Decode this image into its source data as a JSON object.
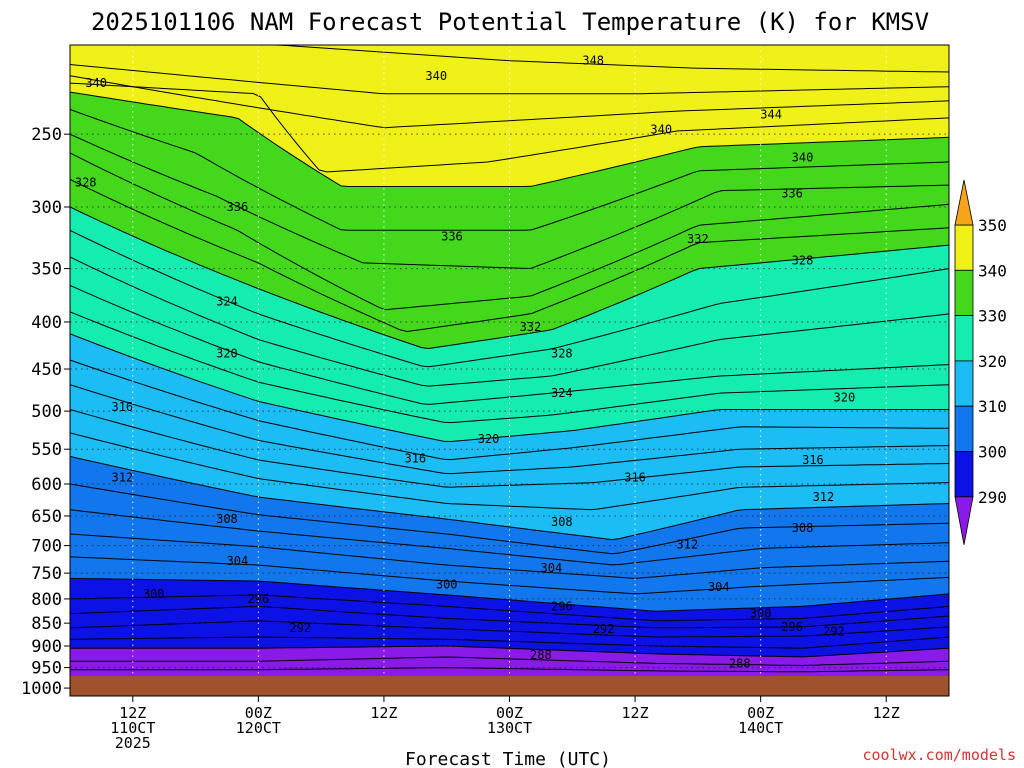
{
  "title": "2025101106 NAM Forecast Potential Temperature (K) for KMSV",
  "credit": "coolwx.com/models",
  "chart_data": {
    "type": "contour",
    "title": "2025101106 NAM Forecast Potential Temperature (K) for KMSV",
    "xlabel": "Forecast Time (UTC)",
    "ylabel": "",
    "x_ticks": [
      {
        "hour": 6,
        "lines": [
          "12Z",
          "110CT",
          "2025"
        ]
      },
      {
        "hour": 18,
        "lines": [
          "00Z",
          "120CT"
        ]
      },
      {
        "hour": 30,
        "lines": [
          "12Z"
        ]
      },
      {
        "hour": 42,
        "lines": [
          "00Z",
          "130CT"
        ]
      },
      {
        "hour": 54,
        "lines": [
          "12Z"
        ]
      },
      {
        "hour": 66,
        "lines": [
          "00Z",
          "140CT"
        ]
      },
      {
        "hour": 78,
        "lines": [
          "12Z"
        ]
      }
    ],
    "x_range_hours": [
      0,
      84
    ],
    "y_scale": "log-pressure",
    "y_ticks": [
      250,
      300,
      350,
      400,
      450,
      500,
      550,
      600,
      650,
      700,
      750,
      800,
      850,
      900,
      950,
      1000
    ],
    "y_range": [
      200,
      1020
    ],
    "surface_pressure": 970,
    "colorbar": {
      "labels": [
        "350",
        "340",
        "330",
        "320",
        "310",
        "300",
        "290"
      ],
      "bins": [
        {
          "range": [
            350,
            360
          ],
          "color": "#f5a517"
        },
        {
          "range": [
            340,
            350
          ],
          "color": "#f0f019"
        },
        {
          "range": [
            330,
            340
          ],
          "color": "#44d81c"
        },
        {
          "range": [
            320,
            330
          ],
          "color": "#14ecb0"
        },
        {
          "range": [
            310,
            320
          ],
          "color": "#1cbcf4"
        },
        {
          "range": [
            300,
            310
          ],
          "color": "#1276ec"
        },
        {
          "range": [
            290,
            300
          ],
          "color": "#0c12e6"
        },
        {
          "range": [
            280,
            290
          ],
          "color": "#8a1ae8"
        }
      ]
    },
    "ground_color": "#a0522d",
    "contour_interval": 2,
    "contour_lines": [
      {
        "value": 348,
        "points": [
          [
            20,
            200
          ],
          [
            42,
            208
          ],
          [
            60,
            212
          ],
          [
            84,
            214
          ]
        ]
      },
      {
        "value": 346,
        "points": [
          [
            0,
            210
          ],
          [
            30,
            226
          ],
          [
            54,
            226
          ],
          [
            84,
            222
          ]
        ]
      },
      {
        "value": 344,
        "points": [
          [
            0,
            216
          ],
          [
            30,
            246
          ],
          [
            58,
            236
          ],
          [
            84,
            230
          ]
        ]
      },
      {
        "value": 342,
        "points": [
          [
            0,
            220
          ],
          [
            18,
            226
          ],
          [
            24,
            275
          ],
          [
            40,
            268
          ],
          [
            58,
            248
          ],
          [
            84,
            240
          ]
        ]
      },
      {
        "value": 340,
        "points": [
          [
            0,
            225
          ],
          [
            16,
            240
          ],
          [
            26,
            285
          ],
          [
            44,
            285
          ],
          [
            60,
            258
          ],
          [
            84,
            252
          ]
        ]
      },
      {
        "value": 338,
        "points": [
          [
            0,
            235
          ],
          [
            12,
            262
          ],
          [
            26,
            318
          ],
          [
            44,
            318
          ],
          [
            60,
            274
          ],
          [
            84,
            268
          ]
        ]
      },
      {
        "value": 336,
        "points": [
          [
            0,
            250
          ],
          [
            14,
            292
          ],
          [
            28,
            345
          ],
          [
            44,
            350
          ],
          [
            62,
            288
          ],
          [
            84,
            284
          ]
        ]
      },
      {
        "value": 334,
        "points": [
          [
            0,
            262
          ],
          [
            16,
            318
          ],
          [
            30,
            388
          ],
          [
            44,
            375
          ],
          [
            60,
            314
          ],
          [
            84,
            298
          ]
        ]
      },
      {
        "value": 332,
        "points": [
          [
            0,
            280
          ],
          [
            18,
            345
          ],
          [
            32,
            410
          ],
          [
            44,
            392
          ],
          [
            60,
            328
          ],
          [
            84,
            316
          ]
        ]
      },
      {
        "value": 330,
        "points": [
          [
            0,
            300
          ],
          [
            18,
            368
          ],
          [
            34,
            428
          ],
          [
            46,
            408
          ],
          [
            60,
            350
          ],
          [
            84,
            330
          ]
        ]
      },
      {
        "value": 328,
        "points": [
          [
            0,
            318
          ],
          [
            18,
            392
          ],
          [
            34,
            448
          ],
          [
            46,
            428
          ],
          [
            62,
            382
          ],
          [
            84,
            350
          ]
        ]
      },
      {
        "value": 326,
        "points": [
          [
            0,
            340
          ],
          [
            18,
            418
          ],
          [
            34,
            470
          ],
          [
            46,
            458
          ],
          [
            62,
            418
          ],
          [
            84,
            392
          ]
        ]
      },
      {
        "value": 324,
        "points": [
          [
            0,
            365
          ],
          [
            18,
            442
          ],
          [
            34,
            492
          ],
          [
            46,
            478
          ],
          [
            62,
            458
          ],
          [
            84,
            445
          ]
        ]
      },
      {
        "value": 322,
        "points": [
          [
            0,
            390
          ],
          [
            18,
            465
          ],
          [
            36,
            515
          ],
          [
            46,
            505
          ],
          [
            62,
            478
          ],
          [
            84,
            468
          ]
        ]
      },
      {
        "value": 320,
        "points": [
          [
            0,
            412
          ],
          [
            18,
            488
          ],
          [
            36,
            540
          ],
          [
            48,
            525
          ],
          [
            62,
            498
          ],
          [
            84,
            498
          ]
        ]
      },
      {
        "value": 318,
        "points": [
          [
            0,
            440
          ],
          [
            18,
            512
          ],
          [
            36,
            565
          ],
          [
            48,
            548
          ],
          [
            64,
            520
          ],
          [
            84,
            522
          ]
        ]
      },
      {
        "value": 316,
        "points": [
          [
            0,
            468
          ],
          [
            18,
            538
          ],
          [
            36,
            585
          ],
          [
            48,
            575
          ],
          [
            64,
            550
          ],
          [
            84,
            545
          ]
        ]
      },
      {
        "value": 314,
        "points": [
          [
            0,
            498
          ],
          [
            18,
            565
          ],
          [
            36,
            605
          ],
          [
            50,
            598
          ],
          [
            64,
            575
          ],
          [
            84,
            570
          ]
        ]
      },
      {
        "value": 312,
        "points": [
          [
            0,
            528
          ],
          [
            18,
            592
          ],
          [
            36,
            630
          ],
          [
            50,
            640
          ],
          [
            64,
            605
          ],
          [
            84,
            598
          ]
        ]
      },
      {
        "value": 310,
        "points": [
          [
            0,
            560
          ],
          [
            18,
            620
          ],
          [
            36,
            655
          ],
          [
            52,
            690
          ],
          [
            64,
            640
          ],
          [
            84,
            630
          ]
        ]
      },
      {
        "value": 308,
        "points": [
          [
            0,
            600
          ],
          [
            18,
            648
          ],
          [
            36,
            680
          ],
          [
            52,
            715
          ],
          [
            64,
            670
          ],
          [
            84,
            662
          ]
        ]
      },
      {
        "value": 306,
        "points": [
          [
            0,
            640
          ],
          [
            18,
            675
          ],
          [
            36,
            705
          ],
          [
            52,
            735
          ],
          [
            66,
            705
          ],
          [
            84,
            695
          ]
        ]
      },
      {
        "value": 304,
        "points": [
          [
            0,
            680
          ],
          [
            18,
            702
          ],
          [
            36,
            735
          ],
          [
            54,
            760
          ],
          [
            66,
            740
          ],
          [
            84,
            728
          ]
        ]
      },
      {
        "value": 302,
        "points": [
          [
            0,
            720
          ],
          [
            18,
            735
          ],
          [
            36,
            765
          ],
          [
            54,
            790
          ],
          [
            66,
            775
          ],
          [
            84,
            758
          ]
        ]
      },
      {
        "value": 300,
        "points": [
          [
            0,
            760
          ],
          [
            18,
            765
          ],
          [
            36,
            792
          ],
          [
            56,
            825
          ],
          [
            70,
            815
          ],
          [
            84,
            790
          ]
        ]
      },
      {
        "value": 298,
        "points": [
          [
            0,
            800
          ],
          [
            18,
            792
          ],
          [
            36,
            815
          ],
          [
            56,
            845
          ],
          [
            70,
            840
          ],
          [
            84,
            815
          ]
        ]
      },
      {
        "value": 296,
        "points": [
          [
            0,
            830
          ],
          [
            18,
            815
          ],
          [
            36,
            840
          ],
          [
            56,
            860
          ],
          [
            70,
            858
          ],
          [
            84,
            835
          ]
        ]
      },
      {
        "value": 294,
        "points": [
          [
            0,
            860
          ],
          [
            18,
            845
          ],
          [
            36,
            862
          ],
          [
            56,
            880
          ],
          [
            70,
            878
          ],
          [
            84,
            858
          ]
        ]
      },
      {
        "value": 292,
        "points": [
          [
            0,
            885
          ],
          [
            18,
            880
          ],
          [
            36,
            885
          ],
          [
            56,
            900
          ],
          [
            70,
            905
          ],
          [
            84,
            880
          ]
        ]
      },
      {
        "value": 290,
        "points": [
          [
            0,
            905
          ],
          [
            18,
            905
          ],
          [
            36,
            900
          ],
          [
            56,
            918
          ],
          [
            70,
            925
          ],
          [
            84,
            905
          ]
        ]
      },
      {
        "value": 288,
        "points": [
          [
            0,
            935
          ],
          [
            18,
            935
          ],
          [
            36,
            925
          ],
          [
            56,
            940
          ],
          [
            70,
            945
          ],
          [
            84,
            935
          ]
        ]
      },
      {
        "value": 286,
        "points": [
          [
            0,
            955
          ],
          [
            18,
            955
          ],
          [
            36,
            950
          ],
          [
            56,
            958
          ],
          [
            70,
            960
          ],
          [
            84,
            955
          ]
        ]
      }
    ],
    "contour_labels": [
      {
        "text": "348",
        "hour": 50,
        "p": 208
      },
      {
        "text": "340",
        "hour": 2.5,
        "p": 220
      },
      {
        "text": "340",
        "hour": 35,
        "p": 216
      },
      {
        "text": "344",
        "hour": 67,
        "p": 238
      },
      {
        "text": "340",
        "hour": 56.5,
        "p": 247
      },
      {
        "text": "340",
        "hour": 70,
        "p": 265
      },
      {
        "text": "328",
        "hour": 1.5,
        "p": 282
      },
      {
        "text": "336",
        "hour": 16,
        "p": 300
      },
      {
        "text": "336",
        "hour": 69,
        "p": 290
      },
      {
        "text": "336",
        "hour": 36.5,
        "p": 323
      },
      {
        "text": "332",
        "hour": 60,
        "p": 325
      },
      {
        "text": "328",
        "hour": 70,
        "p": 343
      },
      {
        "text": "324",
        "hour": 15,
        "p": 380
      },
      {
        "text": "332",
        "hour": 44,
        "p": 405
      },
      {
        "text": "328",
        "hour": 47,
        "p": 433
      },
      {
        "text": "320",
        "hour": 15,
        "p": 433
      },
      {
        "text": "324",
        "hour": 47,
        "p": 478
      },
      {
        "text": "320",
        "hour": 74,
        "p": 483
      },
      {
        "text": "316",
        "hour": 5,
        "p": 495
      },
      {
        "text": "320",
        "hour": 40,
        "p": 536
      },
      {
        "text": "316",
        "hour": 33,
        "p": 563
      },
      {
        "text": "316",
        "hour": 71,
        "p": 565
      },
      {
        "text": "316",
        "hour": 54,
        "p": 590
      },
      {
        "text": "312",
        "hour": 5,
        "p": 590
      },
      {
        "text": "312",
        "hour": 72,
        "p": 620
      },
      {
        "text": "308",
        "hour": 15,
        "p": 655
      },
      {
        "text": "308",
        "hour": 47,
        "p": 660
      },
      {
        "text": "308",
        "hour": 70,
        "p": 670
      },
      {
        "text": "312",
        "hour": 59,
        "p": 698
      },
      {
        "text": "304",
        "hour": 16,
        "p": 728
      },
      {
        "text": "304",
        "hour": 46,
        "p": 740
      },
      {
        "text": "304",
        "hour": 62,
        "p": 776
      },
      {
        "text": "300",
        "hour": 8,
        "p": 790
      },
      {
        "text": "300",
        "hour": 36,
        "p": 772
      },
      {
        "text": "296",
        "hour": 18,
        "p": 800
      },
      {
        "text": "296",
        "hour": 47,
        "p": 815
      },
      {
        "text": "300",
        "hour": 66,
        "p": 830
      },
      {
        "text": "296",
        "hour": 69,
        "p": 858
      },
      {
        "text": "292",
        "hour": 22,
        "p": 860
      },
      {
        "text": "292",
        "hour": 51,
        "p": 862
      },
      {
        "text": "292",
        "hour": 73,
        "p": 868
      },
      {
        "text": "288",
        "hour": 45,
        "p": 920
      },
      {
        "text": "288",
        "hour": 64,
        "p": 940
      }
    ]
  }
}
